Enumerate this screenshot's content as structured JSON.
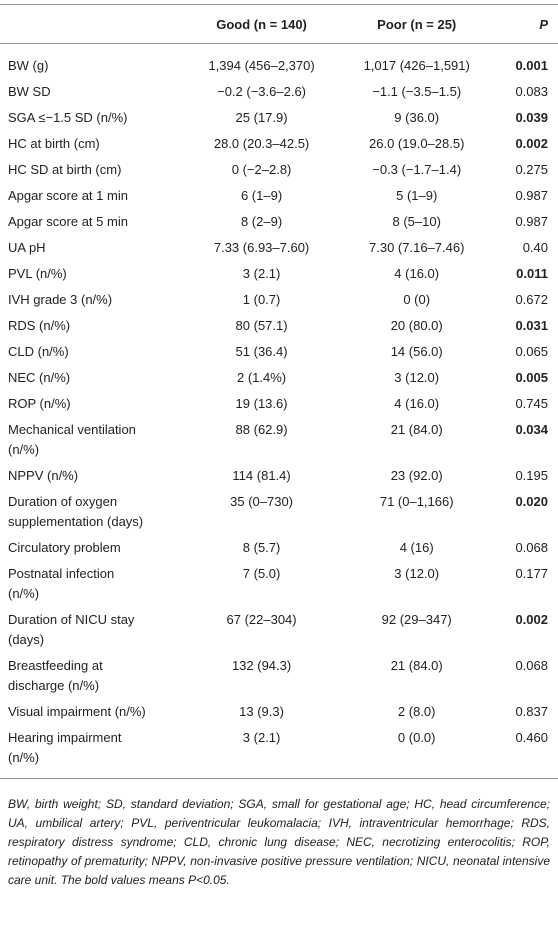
{
  "table": {
    "header": [
      "",
      "Good (n = 140)",
      "Poor (n = 25)",
      "P"
    ],
    "rows": [
      {
        "label": "BW (g)",
        "good": "1,394 (456–2,370)",
        "poor": "1,017 (426–1,591)",
        "p": "0.001",
        "p_bold": true
      },
      {
        "label": "BW SD",
        "good": "−0.2 (−3.6–2.6)",
        "poor": "−1.1 (−3.5–1.5)",
        "p": "0.083",
        "p_bold": false
      },
      {
        "label": "SGA ≤−1.5 SD (n/%)",
        "good": "25 (17.9)",
        "poor": "9 (36.0)",
        "p": "0.039",
        "p_bold": true
      },
      {
        "label": "HC at birth (cm)",
        "good": "28.0 (20.3–42.5)",
        "poor": "26.0 (19.0–28.5)",
        "p": "0.002",
        "p_bold": true
      },
      {
        "label": "HC SD at birth (cm)",
        "good": "0 (−2–2.8)",
        "poor": "−0.3 (−1.7–1.4)",
        "p": "0.275",
        "p_bold": false
      },
      {
        "label": "Apgar score at 1 min",
        "good": "6 (1–9)",
        "poor": "5 (1–9)",
        "p": "0.987",
        "p_bold": false
      },
      {
        "label": "Apgar score at 5 min",
        "good": "8 (2–9)",
        "poor": "8 (5–10)",
        "p": "0.987",
        "p_bold": false
      },
      {
        "label": "UA pH",
        "good": "7.33 (6.93–7.60)",
        "poor": "7.30 (7.16–7.46)",
        "p": "0.40",
        "p_bold": false
      },
      {
        "label": "PVL (n/%)",
        "good": "3 (2.1)",
        "poor": "4 (16.0)",
        "p": "0.011",
        "p_bold": true
      },
      {
        "label": "IVH grade 3 (n/%)",
        "good": "1 (0.7)",
        "poor": "0 (0)",
        "p": "0.672",
        "p_bold": false
      },
      {
        "label": "RDS (n/%)",
        "good": "80 (57.1)",
        "poor": "20 (80.0)",
        "p": "0.031",
        "p_bold": true
      },
      {
        "label": "CLD (n/%)",
        "good": "51 (36.4)",
        "poor": "14 (56.0)",
        "p": "0.065",
        "p_bold": false
      },
      {
        "label": "NEC (n/%)",
        "good": "2 (1.4%)",
        "poor": "3 (12.0)",
        "p": "0.005",
        "p_bold": true
      },
      {
        "label": "ROP (n/%)",
        "good": "19 (13.6)",
        "poor": "4 (16.0)",
        "p": "0.745",
        "p_bold": false
      },
      {
        "label": "Mechanical ventilation\n(n/%)",
        "good": "88 (62.9)",
        "poor": "21 (84.0)",
        "p": "0.034",
        "p_bold": true
      },
      {
        "label": "NPPV (n/%)",
        "good": "114 (81.4)",
        "poor": "23 (92.0)",
        "p": "0.195",
        "p_bold": false
      },
      {
        "label": "Duration of oxygen\nsupplementation (days)",
        "good": "35 (0–730)",
        "poor": "71 (0–1,166)",
        "p": "0.020",
        "p_bold": true
      },
      {
        "label": "Circulatory problem",
        "good": "8 (5.7)",
        "poor": "4 (16)",
        "p": "0.068",
        "p_bold": false
      },
      {
        "label": "Postnatal infection\n(n/%)",
        "good": "7 (5.0)",
        "poor": "3 (12.0)",
        "p": "0.177",
        "p_bold": false
      },
      {
        "label": "Duration of NICU stay\n(days)",
        "good": "67 (22–304)",
        "poor": "92 (29–347)",
        "p": "0.002",
        "p_bold": true
      },
      {
        "label": "Breastfeeding at\ndischarge (n/%)",
        "good": "132 (94.3)",
        "poor": "21 (84.0)",
        "p": "0.068",
        "p_bold": false
      },
      {
        "label": "Visual impairment (n/%)",
        "good": "13 (9.3)",
        "poor": "2 (8.0)",
        "p": "0.837",
        "p_bold": false
      },
      {
        "label": "Hearing impairment\n(n/%)",
        "good": "3 (2.1)",
        "poor": "0 (0.0)",
        "p": "0.460",
        "p_bold": false
      }
    ]
  },
  "footnote": "BW, birth weight; SD, standard deviation; SGA, small for gestational age; HC, head circumference; UA, umbilical artery; PVL, periventricular leukomalacia; IVH, intraventricular hemorrhage; RDS, respiratory distress syndrome; CLD, chronic lung disease; NEC, necrotizing enterocolitis; ROP, retinopathy of prematurity; NPPV, non-invasive positive pressure ventilation; NICU, neonatal intensive care unit. The bold values means P<0.05."
}
